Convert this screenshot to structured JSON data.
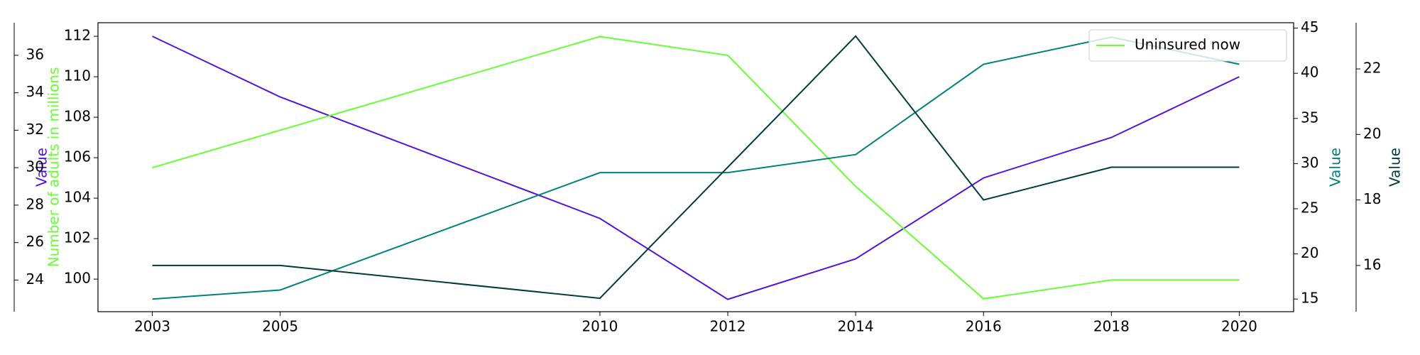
{
  "chart_data": {
    "type": "line",
    "x": [
      2003,
      2005,
      2010,
      2012,
      2014,
      2016,
      2018,
      2020
    ],
    "xlim": [
      2002.15,
      2020.85
    ],
    "xticks": [
      2003,
      2005,
      2010,
      2012,
      2014,
      2016,
      2018,
      2020
    ],
    "series": [
      {
        "color": "#5512dc",
        "axis": "y",
        "values": [
          112,
          109,
          103,
          99,
          101,
          105,
          107,
          110
        ]
      },
      {
        "name": "Uninsured now",
        "color": "#66ff33",
        "axis": "y2",
        "values": [
          30,
          32,
          37,
          36,
          29,
          23,
          24,
          24
        ]
      },
      {
        "color": "#008080",
        "axis": "y3",
        "values": [
          15,
          16,
          29,
          29,
          31,
          41,
          44,
          41
        ]
      },
      {
        "color": "#003c3c",
        "axis": "y4",
        "values": [
          16,
          16,
          15,
          19,
          23,
          18,
          19,
          19
        ]
      }
    ],
    "ylabel": "Value",
    "ylim": [
      98.39,
      112.67
    ],
    "yticks": [
      100,
      102,
      104,
      106,
      108,
      110,
      112
    ],
    "y2label": "Number of adults in millions",
    "y2lim": [
      22.31,
      37.74
    ],
    "y2ticks": [
      24,
      26,
      28,
      30,
      32,
      34,
      36
    ],
    "y3label": "Value",
    "y3lim": [
      13.6,
      45.6
    ],
    "y3ticks": [
      15,
      20,
      25,
      30,
      35,
      40,
      45
    ],
    "y4label": "Value",
    "y4lim": [
      14.59,
      23.41
    ],
    "y4ticks": [
      16,
      18,
      20,
      22
    ],
    "legend": "upper right"
  }
}
